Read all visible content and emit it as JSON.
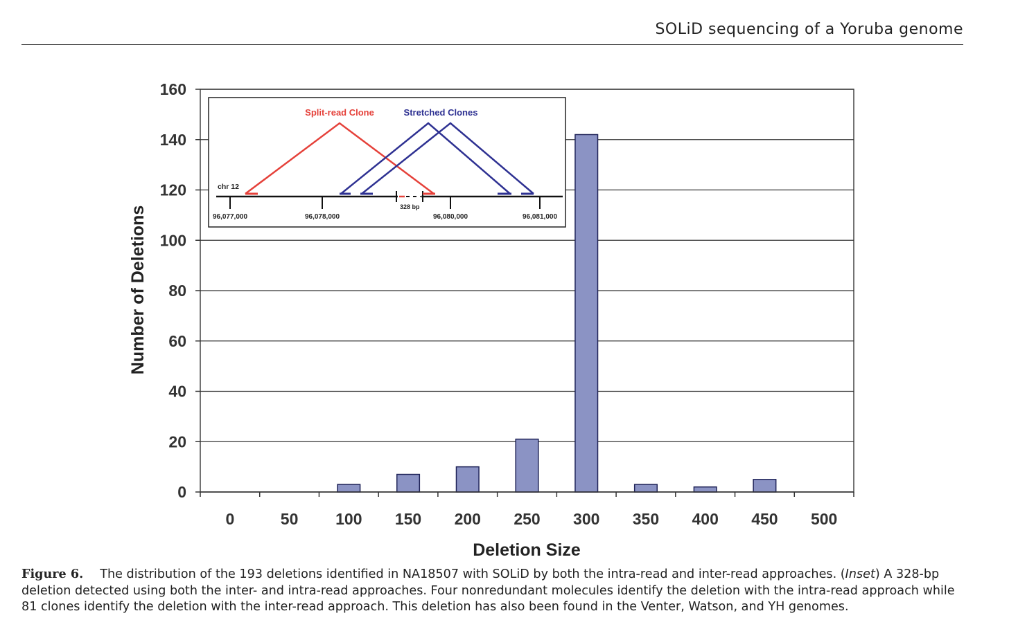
{
  "header": {
    "running_title": "SOLiD sequencing of a Yoruba genome"
  },
  "chart_data": {
    "type": "bar",
    "categories": [
      "0",
      "50",
      "100",
      "150",
      "200",
      "250",
      "300",
      "350",
      "400",
      "450",
      "500"
    ],
    "values": [
      0,
      0,
      3,
      7,
      10,
      21,
      142,
      3,
      2,
      5,
      0
    ],
    "xlabel": "Deletion Size",
    "ylabel": "Number of Deletions",
    "ylim": [
      0,
      160
    ],
    "yticks": [
      0,
      20,
      40,
      60,
      80,
      100,
      120,
      140,
      160
    ],
    "grid": true,
    "bar_color": "#8b93c4",
    "inset": {
      "chromosome_label": "chr 12",
      "positions": [
        "96,077,000",
        "96,078,000",
        "96,080,000",
        "96,081,000"
      ],
      "deletion_label": "328 bp",
      "split_read_label": "Split-read Clone",
      "stretched_label": "Stretched Clones",
      "split_read_color": "#e5413a",
      "stretched_color": "#2e3192"
    }
  },
  "caption": {
    "label": "Figure 6.",
    "text_before_inset": "The distribution of the 193 deletions identified in NA18507 with SOLiD by both the intra-read and inter-read approaches. (",
    "inset_word": "Inset",
    "text_after_inset": ") A 328-bp deletion detected using both the inter- and intra-read approaches. Four nonredundant molecules identify the deletion with the intra-read approach while 81 clones identify the deletion with the inter-read approach. This deletion has also been found in the Venter, Watson, and YH genomes."
  }
}
